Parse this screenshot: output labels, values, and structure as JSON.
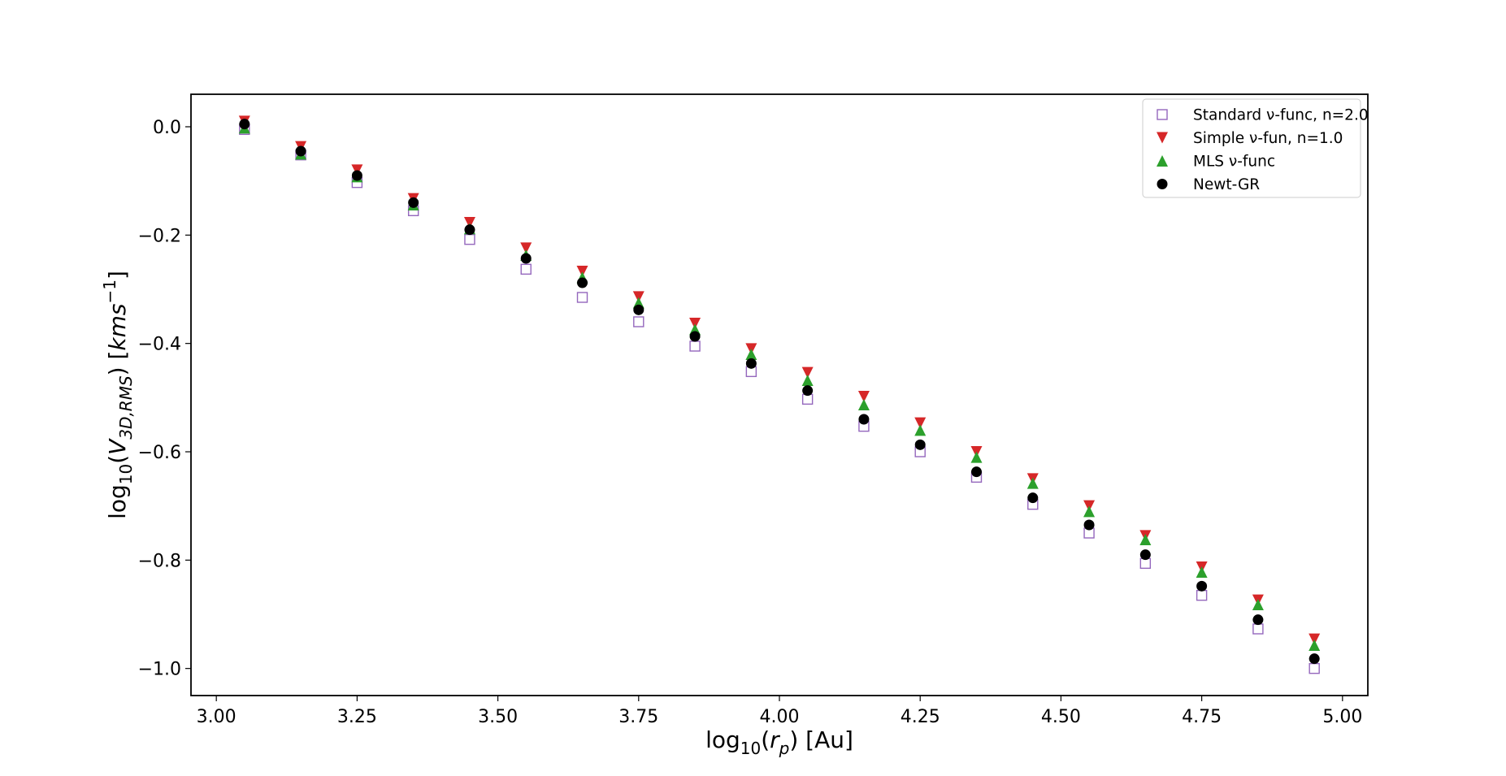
{
  "chart_data": {
    "type": "scatter",
    "title": "",
    "xlabel": {
      "base": "log",
      "sub": "10",
      "open": "(",
      "var": "r",
      "var_sub": "p",
      "close": ") [Au]"
    },
    "ylabel": {
      "base": "log",
      "sub": "10",
      "open": "(",
      "var": "V",
      "var_sub": "3D,RMS",
      "close": ") [",
      "unit": "kms",
      "unit_sup": "−1",
      "end": "]"
    },
    "xlim": [
      2.955,
      5.045
    ],
    "ylim": [
      -1.05,
      0.06
    ],
    "xticks": [
      3.0,
      3.25,
      3.5,
      3.75,
      4.0,
      4.25,
      4.5,
      4.75,
      5.0
    ],
    "xtick_labels": [
      "3.00",
      "3.25",
      "3.50",
      "3.75",
      "4.00",
      "4.25",
      "4.50",
      "4.75",
      "5.00"
    ],
    "yticks": [
      0.0,
      -0.2,
      -0.4,
      -0.6,
      -0.8,
      -1.0
    ],
    "ytick_labels": [
      "0.0",
      "−0.2",
      "−0.4",
      "−0.6",
      "−0.8",
      "−1.0"
    ],
    "legend_position": "top-right",
    "grid": false,
    "x": [
      3.05,
      3.15,
      3.25,
      3.35,
      3.45,
      3.55,
      3.65,
      3.75,
      3.85,
      3.95,
      4.05,
      4.15,
      4.25,
      4.35,
      4.45,
      4.55,
      4.65,
      4.75,
      4.85,
      4.95
    ],
    "series": [
      {
        "name": "Standard ν-func, n=2.0",
        "marker": "square-open",
        "color": "#9467bd",
        "values": [
          -0.005,
          -0.052,
          -0.103,
          -0.155,
          -0.208,
          -0.263,
          -0.315,
          -0.36,
          -0.405,
          -0.452,
          -0.503,
          -0.553,
          -0.6,
          -0.647,
          -0.697,
          -0.75,
          -0.806,
          -0.865,
          -0.927,
          -1.0
        ]
      },
      {
        "name": "Simple ν-fun, n=1.0",
        "marker": "triangle-down",
        "color": "#d62728",
        "values": [
          0.01,
          -0.037,
          -0.08,
          -0.133,
          -0.177,
          -0.224,
          -0.267,
          -0.314,
          -0.363,
          -0.41,
          -0.454,
          -0.498,
          -0.547,
          -0.6,
          -0.65,
          -0.7,
          -0.755,
          -0.813,
          -0.874,
          -0.946
        ]
      },
      {
        "name": "MLS ν-func",
        "marker": "triangle-up",
        "color": "#2ca02c",
        "values": [
          -0.002,
          -0.05,
          -0.092,
          -0.144,
          -0.188,
          -0.237,
          -0.278,
          -0.325,
          -0.374,
          -0.42,
          -0.468,
          -0.513,
          -0.56,
          -0.61,
          -0.658,
          -0.71,
          -0.762,
          -0.822,
          -0.882,
          -0.957
        ]
      },
      {
        "name": "Newt-GR",
        "marker": "circle",
        "color": "#000000",
        "values": [
          0.005,
          -0.045,
          -0.09,
          -0.14,
          -0.19,
          -0.243,
          -0.288,
          -0.338,
          -0.387,
          -0.437,
          -0.487,
          -0.54,
          -0.587,
          -0.637,
          -0.685,
          -0.735,
          -0.79,
          -0.848,
          -0.91,
          -0.982
        ]
      }
    ]
  }
}
